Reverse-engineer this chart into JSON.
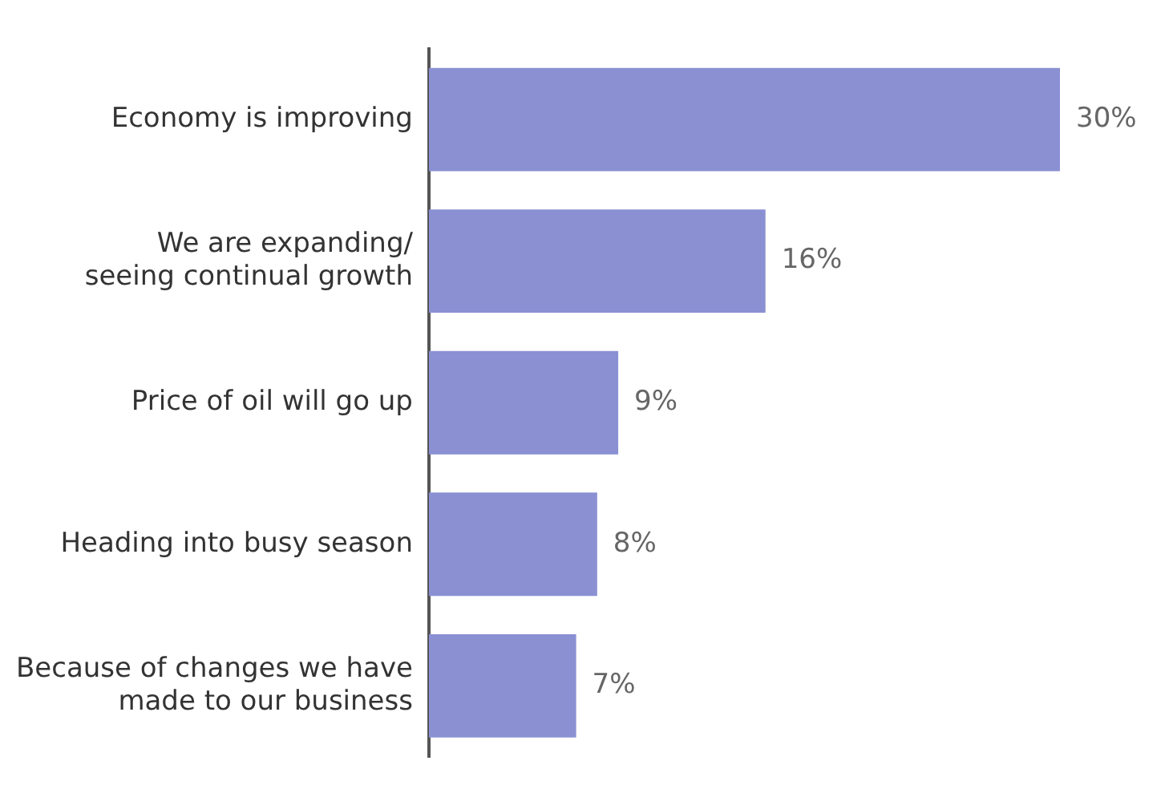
{
  "chart_data": {
    "type": "bar",
    "orientation": "horizontal",
    "categories": [
      "Economy is improving",
      "We are expanding/\nseeing continual growth",
      "Price of oil will go up",
      "Heading into busy season",
      "Because of changes we have\nmade to our business"
    ],
    "values": [
      30,
      16,
      9,
      8,
      7
    ],
    "value_labels": [
      "30%",
      "16%",
      "9%",
      "8%",
      "7%"
    ],
    "color": "#8a90d2",
    "legend": false
  }
}
